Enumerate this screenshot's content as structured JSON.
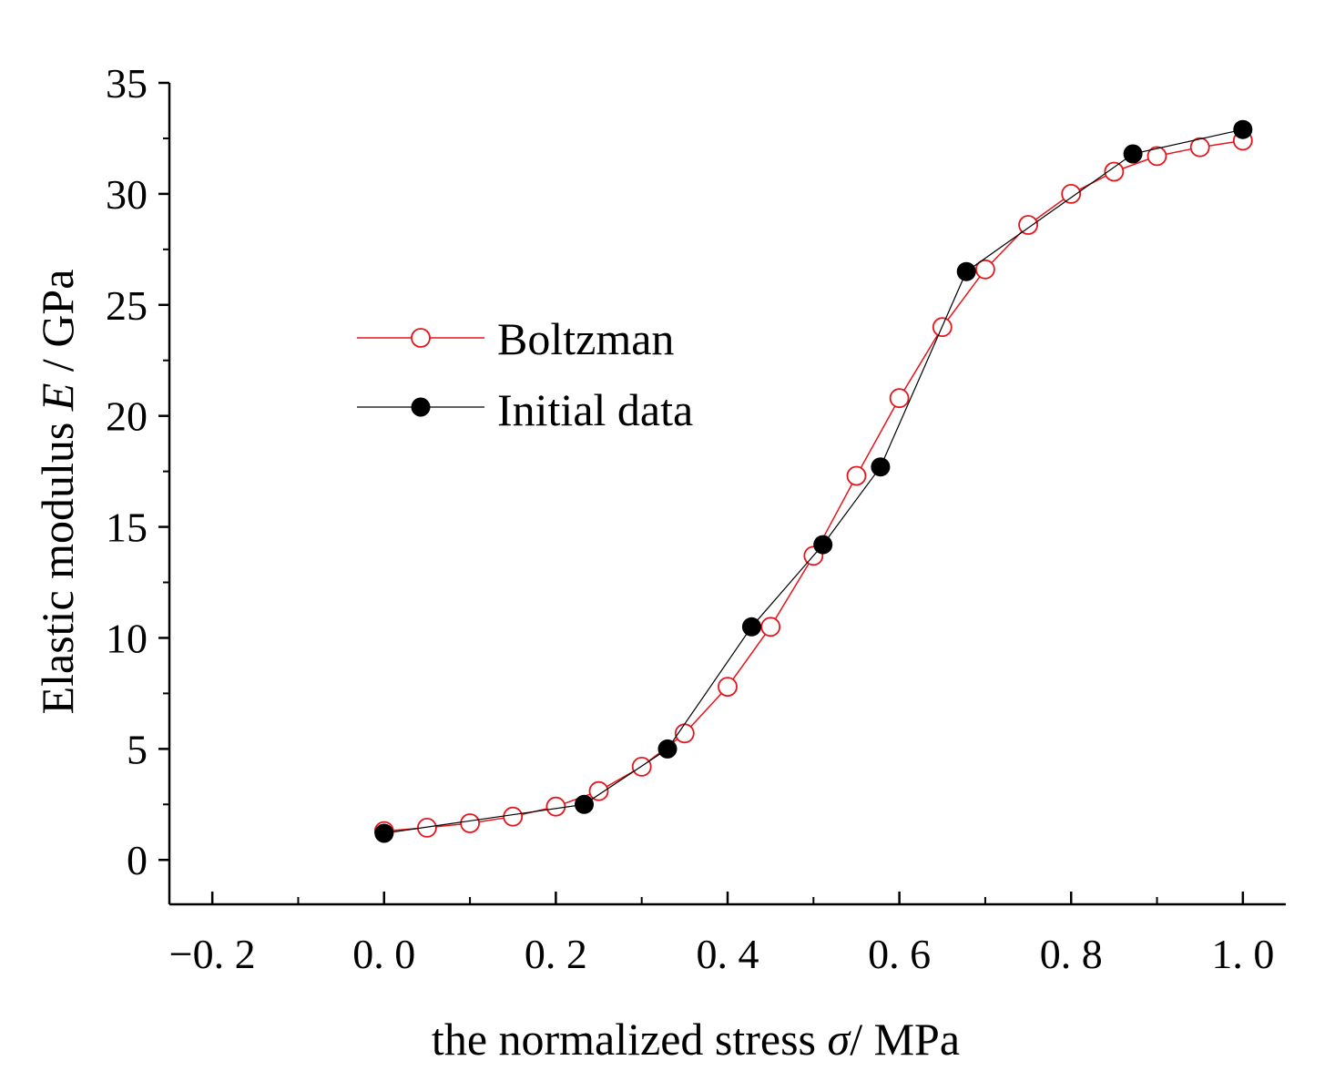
{
  "chart_data": {
    "type": "scatter",
    "title": "",
    "xlabel": {
      "prefix": "the normalized stress ",
      "symbol": "σ",
      "suffix": "/ MPa"
    },
    "ylabel": {
      "prefix": "Elastic modulus ",
      "symbol": "E",
      "suffix": " / GPa"
    },
    "xlim": [
      -0.25,
      1.05
    ],
    "ylim": [
      -2,
      35
    ],
    "xticks": [
      -0.2,
      0.0,
      0.2,
      0.4,
      0.6,
      0.8,
      1.0
    ],
    "xtick_labels": [
      "−0. 2",
      "0. 0",
      "0. 2",
      "0. 4",
      "0. 6",
      "0. 8",
      "1. 0"
    ],
    "yticks": [
      0,
      5,
      10,
      15,
      20,
      25,
      30,
      35
    ],
    "ytick_labels": [
      "0",
      "5",
      "10",
      "15",
      "20",
      "25",
      "30",
      "35"
    ],
    "legend_position": "upper-left",
    "series": [
      {
        "name": "Boltzman",
        "color": "#e8141b",
        "marker": "open-circle",
        "x": [
          0.0,
          0.05,
          0.1,
          0.15,
          0.2,
          0.25,
          0.3,
          0.35,
          0.4,
          0.45,
          0.5,
          0.55,
          0.6,
          0.65,
          0.7,
          0.75,
          0.8,
          0.85,
          0.9,
          0.95,
          1.0
        ],
        "y": [
          1.3,
          1.45,
          1.65,
          1.95,
          2.4,
          3.1,
          4.2,
          5.7,
          7.8,
          10.5,
          13.7,
          17.3,
          20.8,
          24.0,
          26.6,
          28.6,
          30.0,
          31.0,
          31.7,
          32.1,
          32.4
        ]
      },
      {
        "name": "Initial data",
        "color": "#000000",
        "marker": "filled-circle",
        "x": [
          0.0,
          0.233,
          0.33,
          0.428,
          0.511,
          0.578,
          0.678,
          0.872,
          1.0
        ],
        "y": [
          1.2,
          2.5,
          5.0,
          10.5,
          14.2,
          17.7,
          26.5,
          31.8,
          32.9
        ]
      }
    ]
  }
}
